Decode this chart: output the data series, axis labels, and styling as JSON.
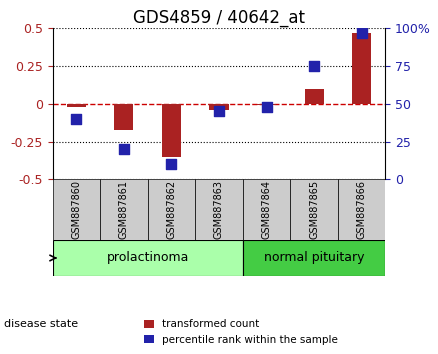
{
  "title": "GDS4859 / 40642_at",
  "samples": [
    "GSM887860",
    "GSM887861",
    "GSM887862",
    "GSM887863",
    "GSM887864",
    "GSM887865",
    "GSM887866"
  ],
  "transformed_count": [
    -0.02,
    -0.17,
    -0.35,
    -0.04,
    -0.01,
    0.1,
    0.47
  ],
  "percentile_rank": [
    40,
    20,
    10,
    45,
    48,
    75,
    97
  ],
  "ylim_left": [
    -0.5,
    0.5
  ],
  "ylim_right": [
    0,
    100
  ],
  "yticks_left": [
    -0.5,
    -0.25,
    0,
    0.25,
    0.5
  ],
  "yticks_right": [
    0,
    25,
    50,
    75,
    100
  ],
  "bar_color": "#AA2222",
  "dot_color": "#2222AA",
  "groups": [
    {
      "label": "prolactinoma",
      "start": 0,
      "end": 3,
      "color": "#AAFFAA"
    },
    {
      "label": "normal pituitary",
      "start": 4,
      "end": 6,
      "color": "#44CC44"
    }
  ],
  "disease_state_label": "disease state",
  "legend_items": [
    {
      "label": "transformed count",
      "color": "#AA2222"
    },
    {
      "label": "percentile rank within the sample",
      "color": "#2222AA"
    }
  ],
  "background_color": "#FFFFFF",
  "plot_bg_color": "#FFFFFF",
  "grid_color": "#000000",
  "tick_label_color_left": "#AA2222",
  "tick_label_color_right": "#2222AA",
  "zero_line_color": "#CC0000",
  "bar_width": 0.4,
  "dot_size": 60
}
